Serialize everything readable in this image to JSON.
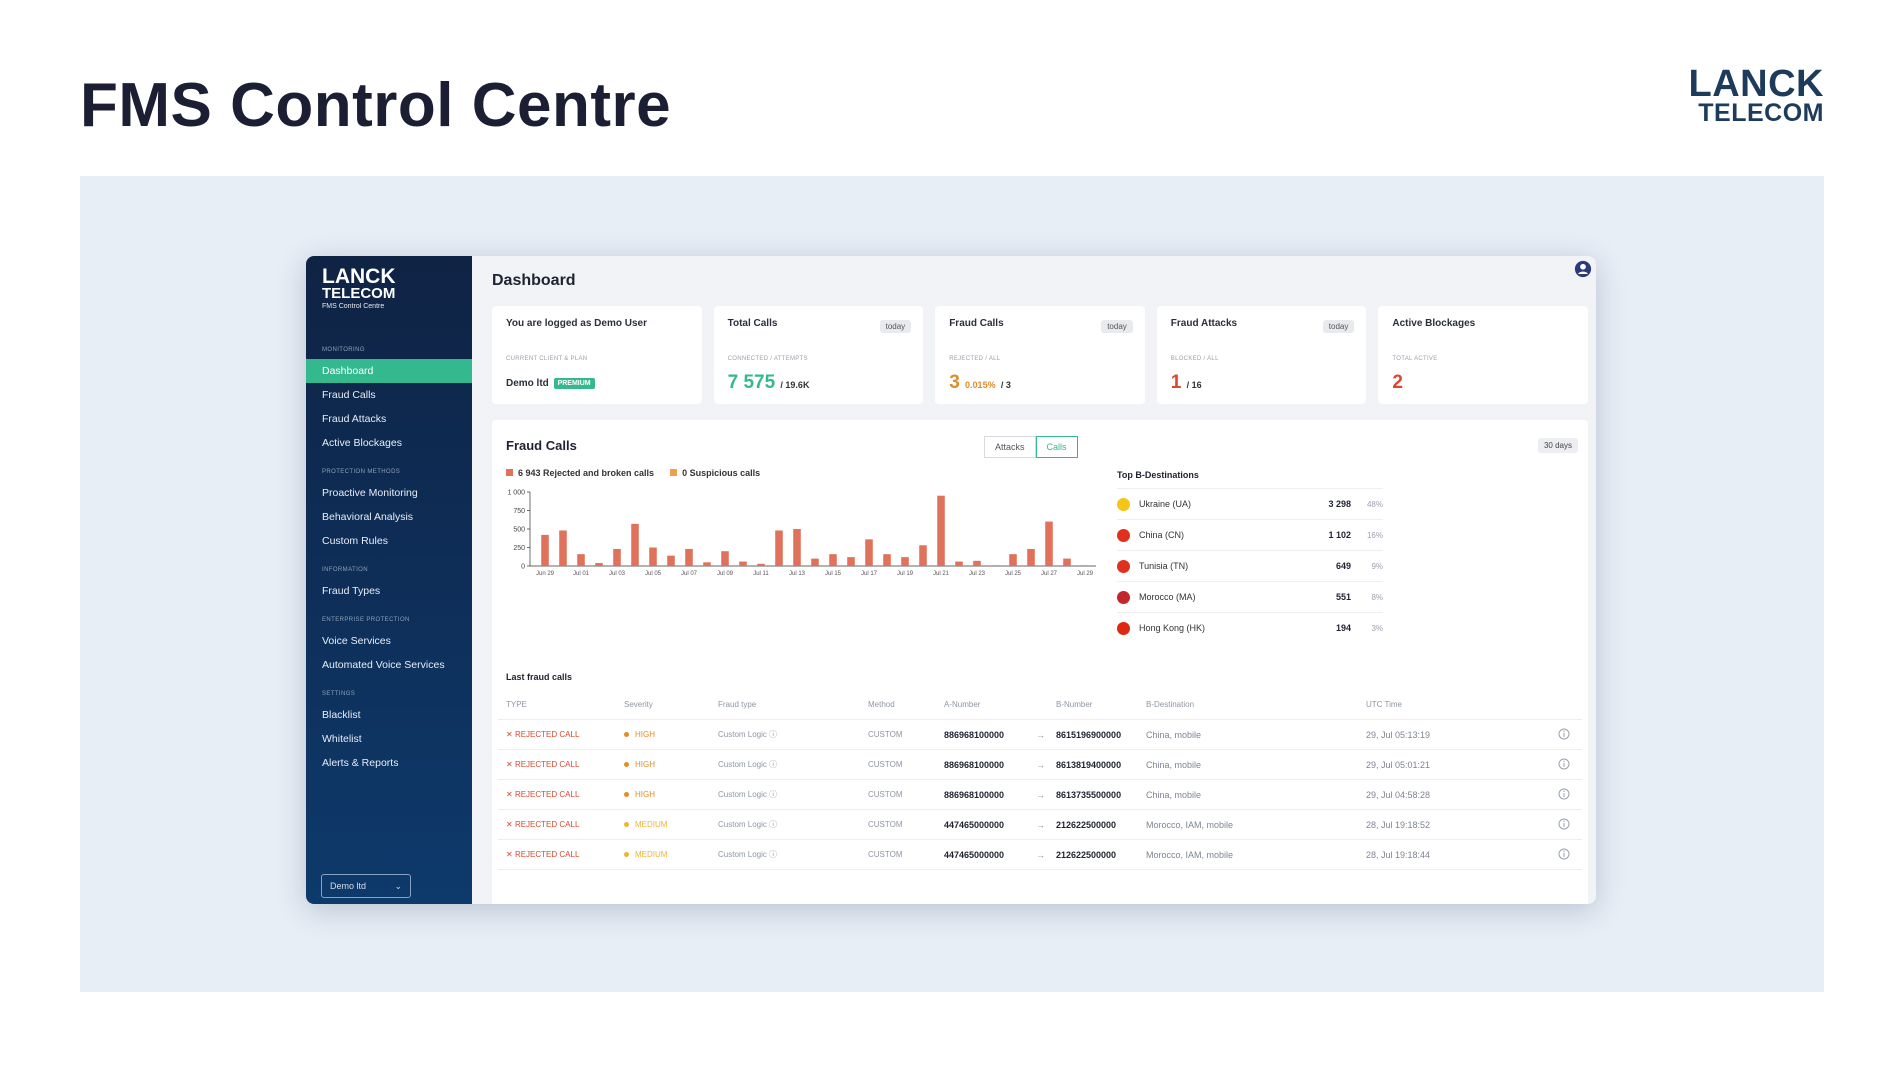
{
  "slide": {
    "title": "FMS Control Centre",
    "brand_line1": "LANCK",
    "brand_line2": "TELECOM"
  },
  "sidebar": {
    "logo_line1": "LANCK",
    "logo_line2": "TELECOM",
    "logo_line3": "FMS Control Centre",
    "sections": {
      "monitoring": "MONITORING",
      "protection": "PROTECTION METHODS",
      "information": "INFORMATION",
      "enterprise": "ENTERPRISE PROTECTION",
      "settings": "SETTINGS"
    },
    "items": {
      "dashboard": "Dashboard",
      "fraud_calls": "Fraud Calls",
      "fraud_attacks": "Fraud Attacks",
      "active_blockages": "Active Blockages",
      "proactive": "Proactive Monitoring",
      "behavioral": "Behavioral Analysis",
      "custom_rules": "Custom Rules",
      "fraud_types": "Fraud Types",
      "voice": "Voice Services",
      "automated_voice": "Automated Voice Services",
      "blacklist": "Blacklist",
      "whitelist": "Whitelist",
      "alerts": "Alerts & Reports"
    },
    "client_select": "Demo ltd"
  },
  "header": {
    "title": "Dashboard"
  },
  "cards": {
    "user": {
      "title": "You are logged as Demo User",
      "sub": "CURRENT CLIENT & PLAN",
      "client": "Demo ltd",
      "plan": "PREMIUM"
    },
    "total": {
      "title": "Total Calls",
      "pill": "today",
      "sub": "CONNECTED / ATTEMPTS",
      "value": "7 575",
      "rest": "/ 19.6K"
    },
    "fraud": {
      "title": "Fraud Calls",
      "pill": "today",
      "sub": "REJECTED / ALL",
      "value": "3",
      "pct": "0.015%",
      "rest": "/ 3"
    },
    "attacks": {
      "title": "Fraud Attacks",
      "pill": "today",
      "sub": "BLOCKED / ALL",
      "value": "1",
      "rest": "/ 16"
    },
    "blockages": {
      "title": "Active Blockages",
      "sub": "TOTAL ACTIVE",
      "value": "2"
    }
  },
  "panel": {
    "title": "Fraud Calls",
    "toggle": {
      "attacks": "Attacks",
      "calls": "Calls"
    },
    "range": "30 days",
    "legend": {
      "rejected": "6 943 Rejected and broken calls",
      "suspicious": "0 Suspicious calls"
    },
    "top_title": "Top B-Destinations",
    "top": [
      {
        "country": "Ukraine (UA)",
        "count": "3 298",
        "pct": "48%",
        "color": "#f5c518"
      },
      {
        "country": "China (CN)",
        "count": "1 102",
        "pct": "16%",
        "color": "#e0301e"
      },
      {
        "country": "Tunisia (TN)",
        "count": "649",
        "pct": "9%",
        "color": "#e0301e"
      },
      {
        "country": "Morocco (MA)",
        "count": "551",
        "pct": "8%",
        "color": "#c1272d"
      },
      {
        "country": "Hong Kong (HK)",
        "count": "194",
        "pct": "3%",
        "color": "#de2910"
      }
    ],
    "last_title": "Last fraud calls",
    "columns": {
      "type": "TYPE",
      "severity": "Severity",
      "fraud_type": "Fraud type",
      "method": "Method",
      "a": "A-Number",
      "b": "B-Number",
      "dest": "B-Destination",
      "time": "UTC Time"
    },
    "rows": [
      {
        "type": "REJECTED CALL",
        "severity": "HIGH",
        "level": "high",
        "fraud_type": "Custom Logic",
        "method": "CUSTOM",
        "a": "886968100000",
        "b": "8615196900000",
        "dest": "China, mobile",
        "time": "29, Jul 05:13:19"
      },
      {
        "type": "REJECTED CALL",
        "severity": "HIGH",
        "level": "high",
        "fraud_type": "Custom Logic",
        "method": "CUSTOM",
        "a": "886968100000",
        "b": "8613819400000",
        "dest": "China, mobile",
        "time": "29, Jul 05:01:21"
      },
      {
        "type": "REJECTED CALL",
        "severity": "HIGH",
        "level": "high",
        "fraud_type": "Custom Logic",
        "method": "CUSTOM",
        "a": "886968100000",
        "b": "8613735500000",
        "dest": "China, mobile",
        "time": "29, Jul 04:58:28"
      },
      {
        "type": "REJECTED CALL",
        "severity": "MEDIUM",
        "level": "med",
        "fraud_type": "Custom Logic",
        "method": "CUSTOM",
        "a": "447465000000",
        "b": "212622500000",
        "dest": "Morocco, IAM, mobile",
        "time": "28, Jul 19:18:52"
      },
      {
        "type": "REJECTED CALL",
        "severity": "MEDIUM",
        "level": "med",
        "fraud_type": "Custom Logic",
        "method": "CUSTOM",
        "a": "447465000000",
        "b": "212622500000",
        "dest": "Morocco, IAM, mobile",
        "time": "28, Jul 19:18:44"
      }
    ]
  },
  "chart_data": {
    "type": "bar",
    "ytick_labels": [
      "0",
      "250",
      "500",
      "750",
      "1 000"
    ],
    "yticks": [
      0,
      250,
      500,
      750,
      1000
    ],
    "ylim": [
      0,
      1000
    ],
    "xtick_labels": [
      "Jun 29",
      "Jul 01",
      "Jul 03",
      "Jul 05",
      "Jul 07",
      "Jul 09",
      "Jul 11",
      "Jul 13",
      "Jul 15",
      "Jul 17",
      "Jul 19",
      "Jul 21",
      "Jul 23",
      "Jul 25",
      "Jul 27",
      "Jul 29"
    ],
    "series": [
      {
        "name": "6 943 Rejected and broken calls",
        "color": "#e0715a",
        "values": [
          420,
          480,
          160,
          40,
          230,
          570,
          250,
          140,
          230,
          50,
          200,
          60,
          30,
          480,
          500,
          100,
          160,
          120,
          360,
          160,
          120,
          280,
          950,
          60,
          70,
          10,
          160,
          230,
          600,
          100,
          10
        ]
      }
    ]
  }
}
